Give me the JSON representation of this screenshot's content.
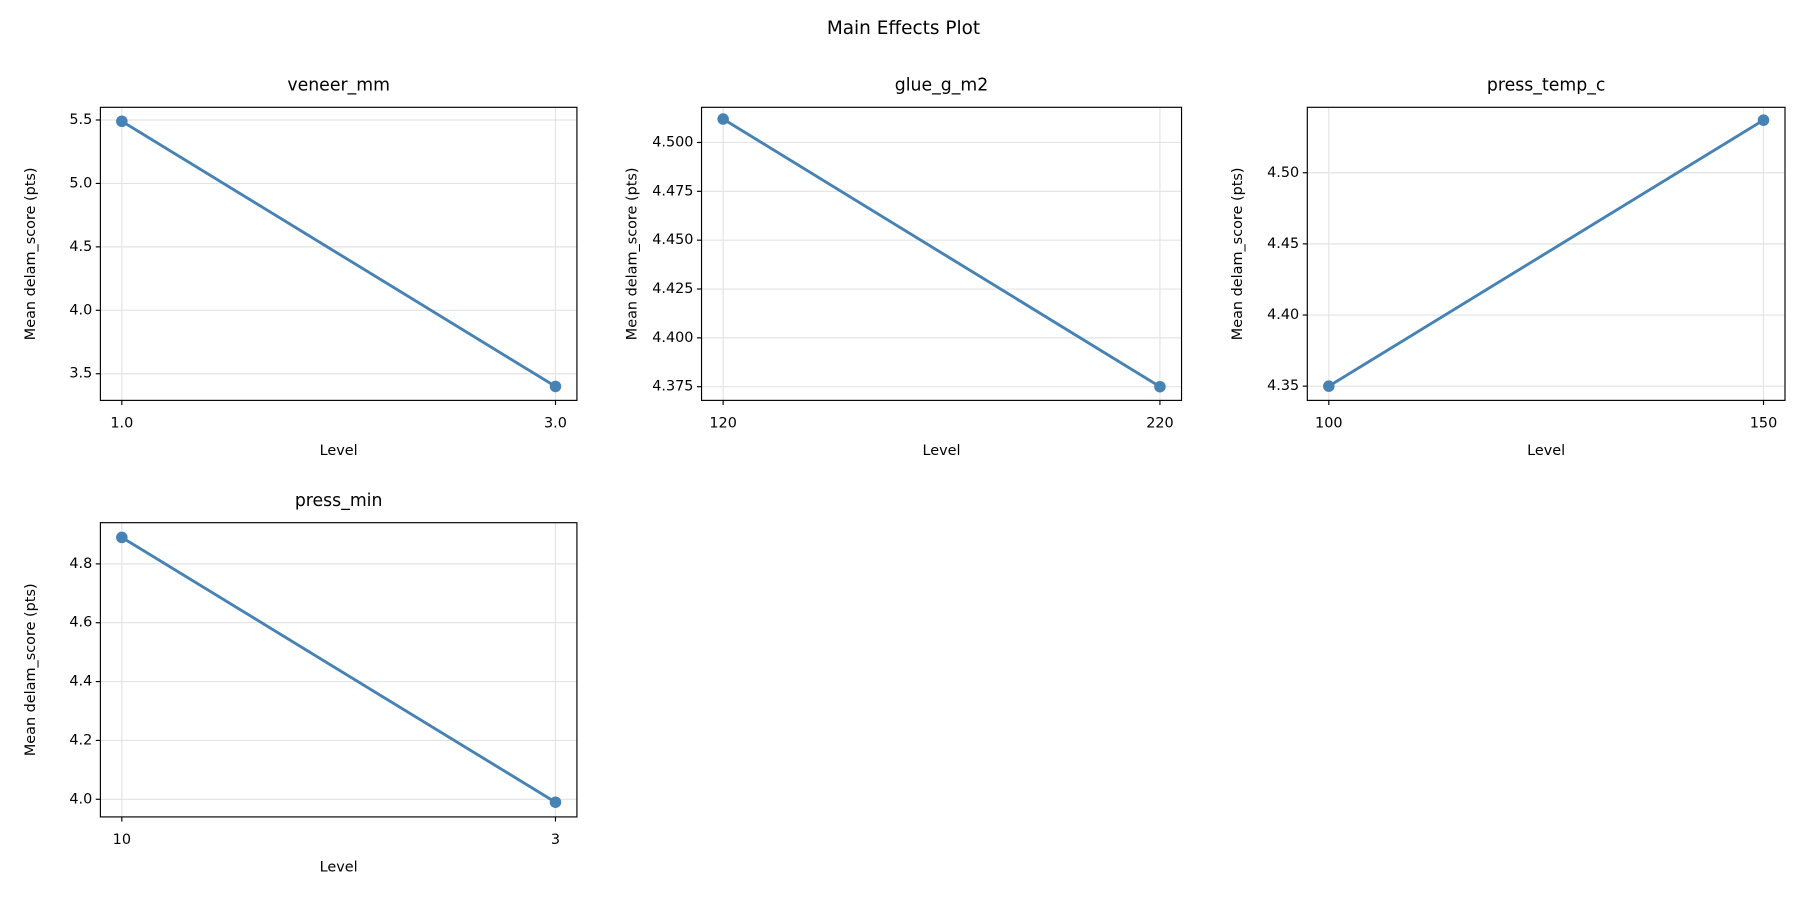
{
  "title": "Main Effects Plot",
  "chart_data": [
    {
      "type": "line",
      "title": "veneer_mm",
      "xlabel": "Level",
      "ylabel": "Mean delam_score (pts)",
      "categories": [
        "1.0",
        "3.0"
      ],
      "values": [
        5.49,
        3.4
      ],
      "color": "#4682b4",
      "ylim": [
        3.29,
        5.6
      ],
      "yticks": [
        3.5,
        {
          "value": 4,
          "label": "4.0"
        },
        4.5,
        {
          "value": 5,
          "label": "5.0"
        },
        5.5
      ],
      "grid": true
    },
    {
      "type": "line",
      "title": "glue_g_m2",
      "xlabel": "Level",
      "ylabel": "Mean delam_score (pts)",
      "categories": [
        "120",
        "220"
      ],
      "values": [
        4.512,
        4.375
      ],
      "color": "#4682b4",
      "ylim": [
        4.368,
        4.518
      ],
      "yticks": [
        4.375,
        {
          "value": 4.4,
          "label": "4.400"
        },
        4.425,
        {
          "value": 4.45,
          "label": "4.450"
        },
        4.475,
        {
          "value": 4.5,
          "label": "4.500"
        }
      ],
      "grid": true
    },
    {
      "type": "line",
      "title": "press_temp_c",
      "xlabel": "Level",
      "ylabel": "Mean delam_score (pts)",
      "categories": [
        "100",
        "150"
      ],
      "values": [
        4.35,
        4.537
      ],
      "color": "#4682b4",
      "ylim": [
        4.34,
        4.546
      ],
      "yticks": [
        4.35,
        {
          "value": 4.4,
          "label": "4.40"
        },
        4.45,
        {
          "value": 4.5,
          "label": "4.50"
        }
      ],
      "grid": true
    },
    {
      "type": "line",
      "title": "press_min",
      "xlabel": "Level",
      "ylabel": "Mean delam_score (pts)",
      "categories": [
        "10",
        "3"
      ],
      "values": [
        4.89,
        3.99
      ],
      "color": "#4682b4",
      "ylim": [
        3.94,
        4.94
      ],
      "yticks": [
        {
          "value": 4,
          "label": "4.0"
        },
        4.2,
        4.4,
        4.6,
        4.8
      ],
      "grid": true
    }
  ]
}
